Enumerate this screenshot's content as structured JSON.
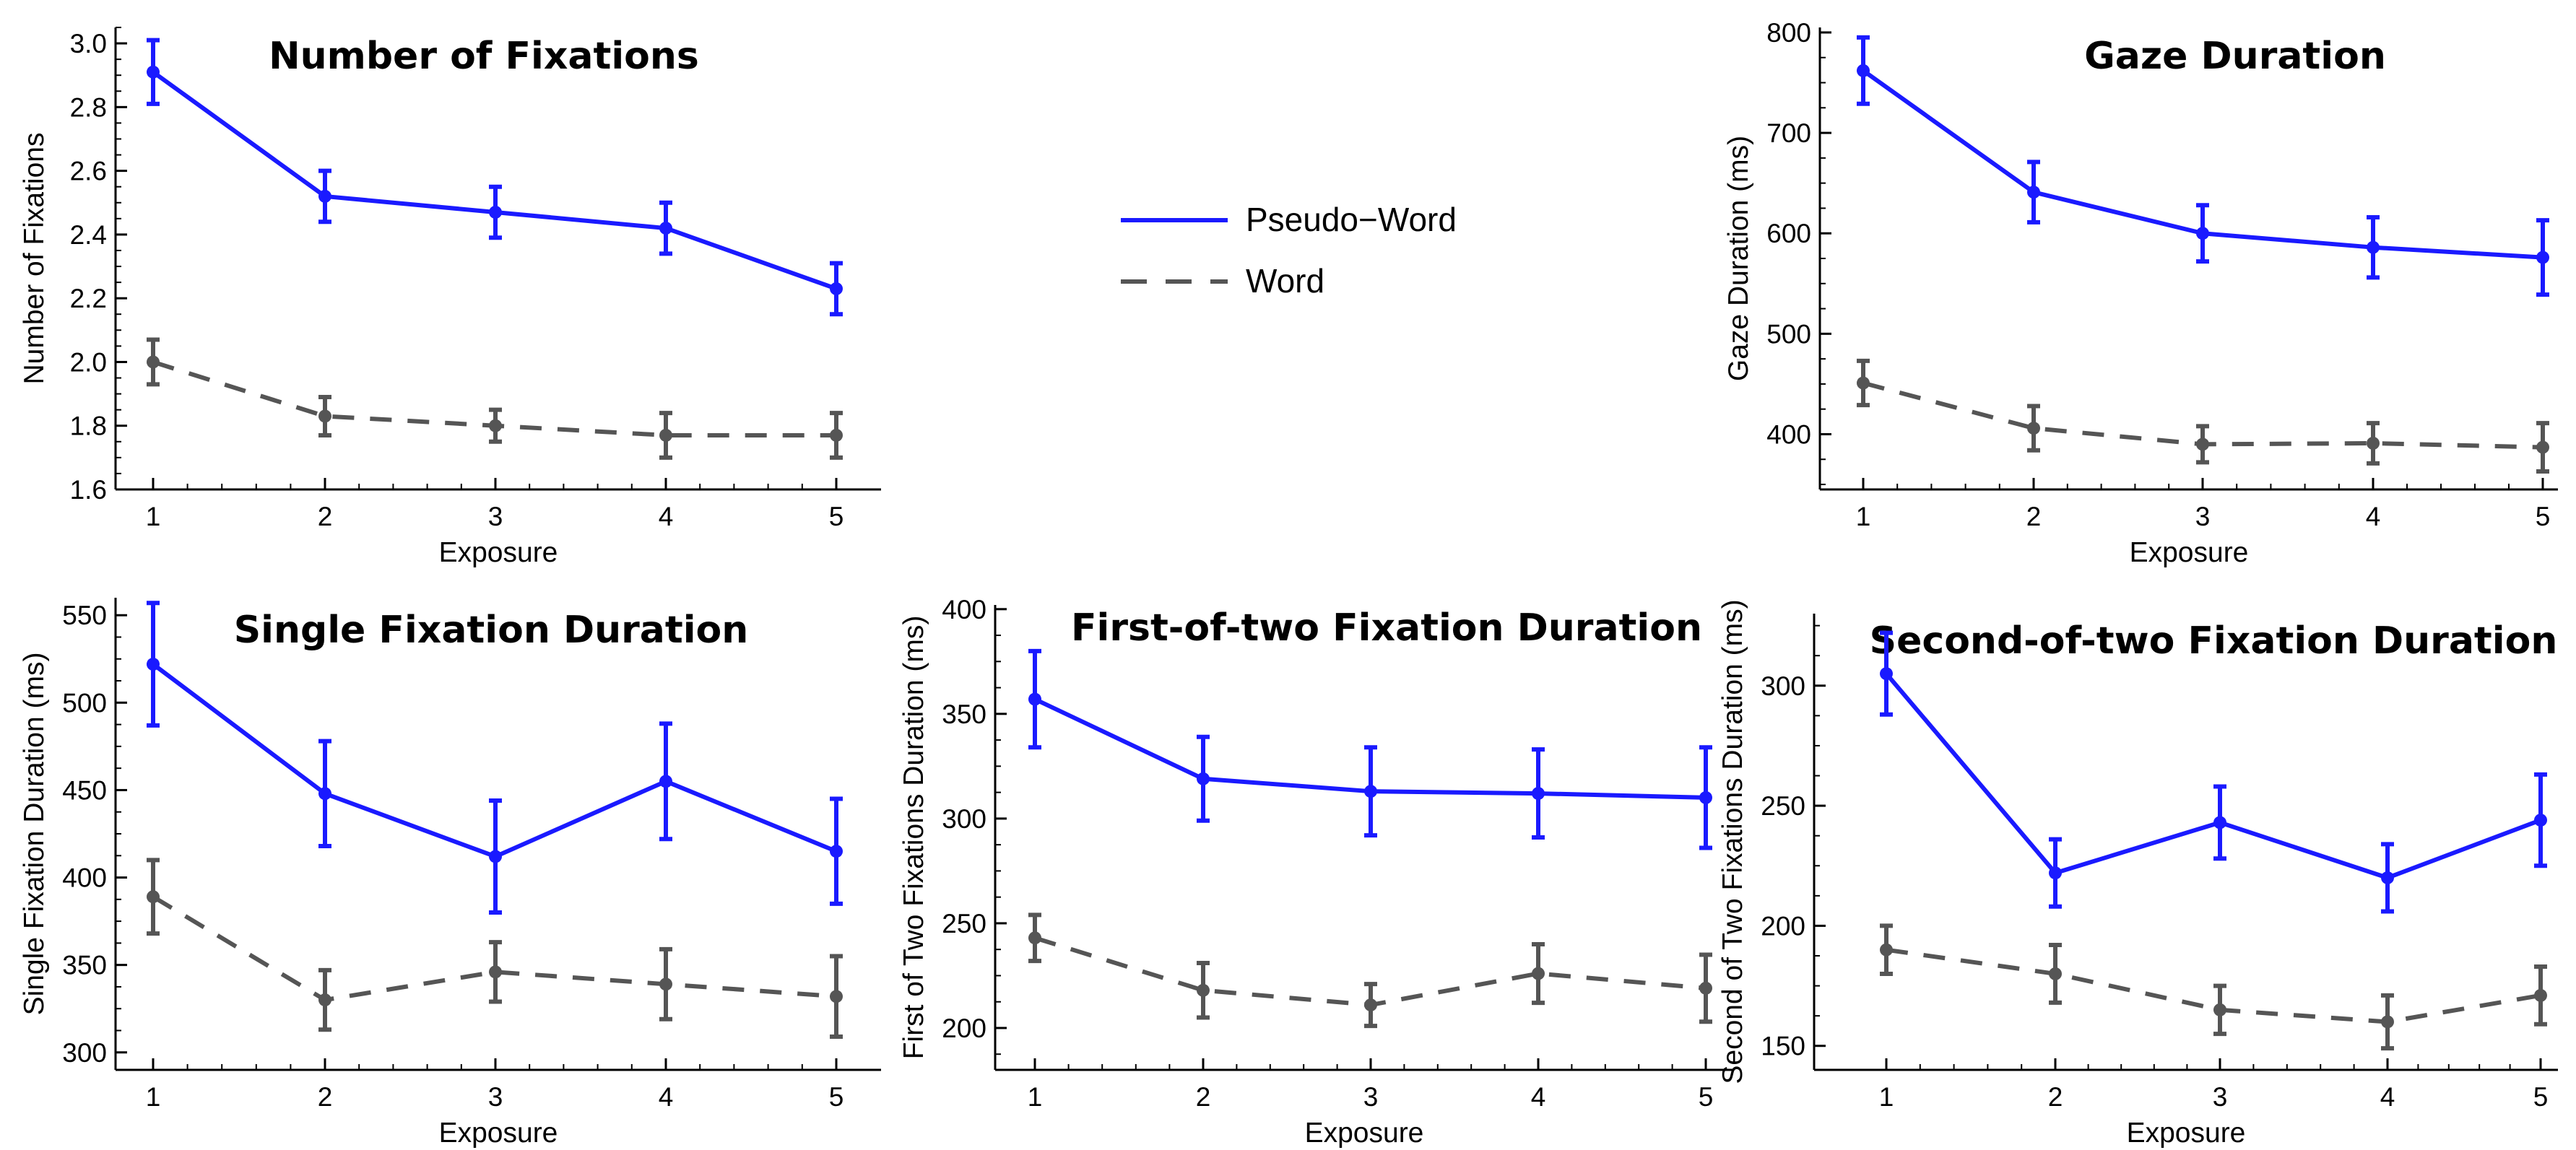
{
  "legend": {
    "entries": [
      {
        "label": "Pseudo−Word",
        "color": "#1a1aff",
        "style": "solid"
      },
      {
        "label": "Word",
        "color": "#555555",
        "style": "dashed"
      }
    ]
  },
  "chart_data": [
    {
      "type": "line",
      "title": "Number of Fixations",
      "xlabel": "Exposure",
      "ylabel": "Number of Fixations",
      "x": [
        1,
        2,
        3,
        4,
        5
      ],
      "xticks": [
        "1",
        "2",
        "3",
        "4",
        "5"
      ],
      "ylim": [
        1.6,
        3.05
      ],
      "yticks": [
        "1.6",
        "1.8",
        "2.0",
        "2.2",
        "2.4",
        "2.6",
        "2.8",
        "3.0"
      ],
      "series": [
        {
          "name": "Pseudo−Word",
          "color": "#1a1aff",
          "style": "solid",
          "values": [
            2.91,
            2.52,
            2.47,
            2.42,
            2.23
          ],
          "err": [
            0.1,
            0.08,
            0.08,
            0.08,
            0.08
          ]
        },
        {
          "name": "Word",
          "color": "#555555",
          "style": "dashed",
          "values": [
            2.0,
            1.83,
            1.8,
            1.77,
            1.77
          ],
          "err": [
            0.07,
            0.06,
            0.05,
            0.07,
            0.07
          ]
        }
      ]
    },
    {
      "type": "line",
      "title": "Gaze Duration",
      "xlabel": "Exposure",
      "ylabel": "Gaze Duration (ms)",
      "x": [
        1,
        2,
        3,
        4,
        5
      ],
      "xticks": [
        "1",
        "2",
        "3",
        "4",
        "5"
      ],
      "ylim": [
        345,
        805
      ],
      "yticks": [
        "400",
        "500",
        "600",
        "700",
        "800"
      ],
      "series": [
        {
          "name": "Pseudo−Word",
          "color": "#1a1aff",
          "style": "solid",
          "values": [
            762,
            641,
            600,
            586,
            576
          ],
          "err": [
            33,
            30,
            28,
            30,
            37
          ]
        },
        {
          "name": "Word",
          "color": "#555555",
          "style": "dashed",
          "values": [
            451,
            406,
            390,
            391,
            387
          ],
          "err": [
            22,
            22,
            18,
            20,
            24
          ]
        }
      ]
    },
    {
      "type": "line",
      "title": "Single Fixation Duration",
      "xlabel": "Exposure",
      "ylabel": "Single Fixation Duration (ms)",
      "x": [
        1,
        2,
        3,
        4,
        5
      ],
      "xticks": [
        "1",
        "2",
        "3",
        "4",
        "5"
      ],
      "ylim": [
        290,
        560
      ],
      "yticks": [
        "300",
        "350",
        "400",
        "450",
        "500",
        "550"
      ],
      "series": [
        {
          "name": "Pseudo−Word",
          "color": "#1a1aff",
          "style": "solid",
          "values": [
            522,
            448,
            412,
            455,
            415
          ],
          "err": [
            35,
            30,
            32,
            33,
            30
          ]
        },
        {
          "name": "Word",
          "color": "#555555",
          "style": "dashed",
          "values": [
            389,
            330,
            346,
            339,
            332
          ],
          "err": [
            21,
            17,
            17,
            20,
            23
          ]
        }
      ]
    },
    {
      "type": "line",
      "title": "First-of-two Fixation Duration",
      "xlabel": "Exposure",
      "ylabel": "First of Two Fixations Duration (ms)",
      "x": [
        1,
        2,
        3,
        4,
        5
      ],
      "xticks": [
        "1",
        "2",
        "3",
        "4",
        "5"
      ],
      "ylim": [
        180,
        402
      ],
      "yticks": [
        "200",
        "250",
        "300",
        "350",
        "400"
      ],
      "series": [
        {
          "name": "Pseudo−Word",
          "color": "#1a1aff",
          "style": "solid",
          "values": [
            357,
            319,
            313,
            312,
            310
          ],
          "err": [
            23,
            20,
            21,
            21,
            24
          ]
        },
        {
          "name": "Word",
          "color": "#555555",
          "style": "dashed",
          "values": [
            243,
            218,
            211,
            226,
            219
          ],
          "err": [
            11,
            13,
            10,
            14,
            16
          ]
        }
      ]
    },
    {
      "type": "line",
      "title": "Second-of-two Fixation Duration",
      "xlabel": "Exposure",
      "ylabel": "Second of Two Fixations Duration (ms)",
      "x": [
        1,
        2,
        3,
        4,
        5
      ],
      "xticks": [
        "1",
        "2",
        "3",
        "4",
        "5"
      ],
      "ylim": [
        140,
        330
      ],
      "yticks": [
        "150",
        "200",
        "250",
        "300"
      ],
      "series": [
        {
          "name": "Pseudo−Word",
          "color": "#1a1aff",
          "style": "solid",
          "values": [
            305,
            222,
            243,
            220,
            244
          ],
          "err": [
            17,
            14,
            15,
            14,
            19
          ]
        },
        {
          "name": "Word",
          "color": "#555555",
          "style": "dashed",
          "values": [
            190,
            180,
            165,
            160,
            171
          ],
          "err": [
            10,
            12,
            10,
            11,
            12
          ]
        }
      ]
    }
  ]
}
